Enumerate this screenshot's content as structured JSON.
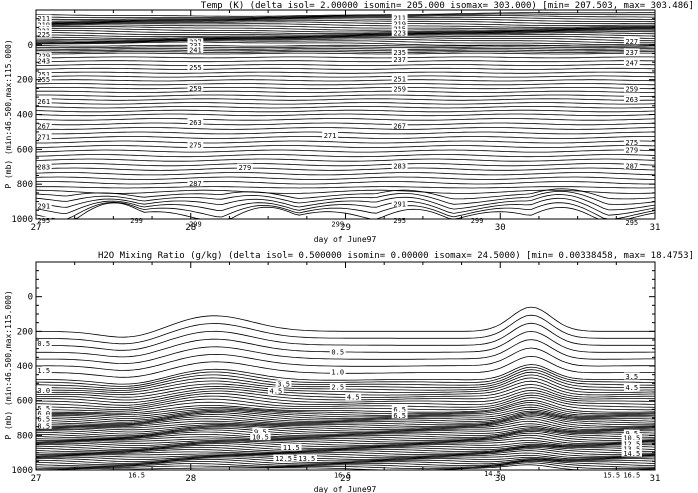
{
  "chart_data": [
    {
      "type": "contour",
      "title": "Temp (K)  (delta isol= 2.00000  isomin= 205.000  isomax= 303.000) [min= 207.503, max= 303.486]",
      "xlabel": "day of June97",
      "ylabel": "P (mb) (min:46.500,max:115.000)",
      "xlim": [
        27,
        31
      ],
      "ylim": [
        1000,
        -200
      ],
      "x_ticks": [
        "27",
        "28",
        "29",
        "30",
        "31"
      ],
      "y_ticks": [
        "0",
        "200",
        "400",
        "600",
        "800",
        "1000"
      ],
      "contour_interval": 2.0,
      "contour_min": 205.0,
      "contour_max": 303.0,
      "data_min": 207.503,
      "data_max": 303.486,
      "contour_labels": [
        {
          "x": 27.05,
          "y": -150,
          "text": "211"
        },
        {
          "x": 27.05,
          "y": -115,
          "text": "219"
        },
        {
          "x": 27.05,
          "y": -92,
          "text": "215"
        },
        {
          "x": 27.05,
          "y": -80,
          "text": "221"
        },
        {
          "x": 27.05,
          "y": -60,
          "text": "225"
        },
        {
          "x": 27.05,
          "y": 65,
          "text": "229"
        },
        {
          "x": 27.05,
          "y": 92,
          "text": "243"
        },
        {
          "x": 27.05,
          "y": 170,
          "text": "251"
        },
        {
          "x": 27.05,
          "y": 200,
          "text": "255"
        },
        {
          "x": 27.05,
          "y": 325,
          "text": "261"
        },
        {
          "x": 27.05,
          "y": 465,
          "text": "267"
        },
        {
          "x": 27.05,
          "y": 530,
          "text": "271"
        },
        {
          "x": 27.05,
          "y": 700,
          "text": "283"
        },
        {
          "x": 27.05,
          "y": 925,
          "text": "291"
        },
        {
          "x": 27.05,
          "y": 1010,
          "text": "295"
        },
        {
          "x": 28.03,
          "y": -15,
          "text": "227"
        },
        {
          "x": 28.03,
          "y": 5,
          "text": "231"
        },
        {
          "x": 28.03,
          "y": 30,
          "text": "241"
        },
        {
          "x": 28.03,
          "y": 130,
          "text": "255"
        },
        {
          "x": 28.03,
          "y": 250,
          "text": "259"
        },
        {
          "x": 28.03,
          "y": 445,
          "text": "263"
        },
        {
          "x": 28.03,
          "y": 575,
          "text": "275"
        },
        {
          "x": 28.03,
          "y": 795,
          "text": "287"
        },
        {
          "x": 28.03,
          "y": 1030,
          "text": "299"
        },
        {
          "x": 27.65,
          "y": 1010,
          "text": "299"
        },
        {
          "x": 28.95,
          "y": 1030,
          "text": "299"
        },
        {
          "x": 28.35,
          "y": 705,
          "text": "279"
        },
        {
          "x": 28.9,
          "y": 520,
          "text": "271"
        },
        {
          "x": 29.35,
          "y": -155,
          "text": "211"
        },
        {
          "x": 29.35,
          "y": -120,
          "text": "219"
        },
        {
          "x": 29.35,
          "y": -92,
          "text": "215"
        },
        {
          "x": 29.35,
          "y": -68,
          "text": "223"
        },
        {
          "x": 29.35,
          "y": 45,
          "text": "235"
        },
        {
          "x": 29.35,
          "y": 85,
          "text": "237"
        },
        {
          "x": 29.35,
          "y": 195,
          "text": "251"
        },
        {
          "x": 29.35,
          "y": 255,
          "text": "259"
        },
        {
          "x": 29.35,
          "y": 465,
          "text": "267"
        },
        {
          "x": 29.35,
          "y": 695,
          "text": "283"
        },
        {
          "x": 29.35,
          "y": 915,
          "text": "291"
        },
        {
          "x": 29.35,
          "y": 1010,
          "text": "295"
        },
        {
          "x": 29.85,
          "y": 1010,
          "text": "299"
        },
        {
          "x": 30.85,
          "y": -20,
          "text": "227"
        },
        {
          "x": 30.85,
          "y": 45,
          "text": "237"
        },
        {
          "x": 30.85,
          "y": 105,
          "text": "247"
        },
        {
          "x": 30.85,
          "y": 255,
          "text": "259"
        },
        {
          "x": 30.85,
          "y": 315,
          "text": "263"
        },
        {
          "x": 30.85,
          "y": 560,
          "text": "275"
        },
        {
          "x": 30.85,
          "y": 605,
          "text": "279"
        },
        {
          "x": 30.85,
          "y": 695,
          "text": "287"
        },
        {
          "x": 30.85,
          "y": 1020,
          "text": "295"
        }
      ]
    },
    {
      "type": "contour",
      "title": "H2O Mixing Ratio (g/kg)  (delta isol= 0.500000  isomin= 0.00000  isomax= 24.5000) [min= 0.00338458, max= 18.4753]",
      "xlabel": "day of June97",
      "ylabel": "P (mb) (min:46.500,max:115.000)",
      "xlim": [
        27,
        31
      ],
      "ylim": [
        1000,
        -200
      ],
      "x_ticks": [
        "27",
        "28",
        "29",
        "30",
        "31"
      ],
      "y_ticks": [
        "0",
        "200",
        "400",
        "600",
        "800",
        "1000"
      ],
      "contour_interval": 0.5,
      "contour_min": 0.0,
      "contour_max": 24.5,
      "data_min": 0.00338458,
      "data_max": 18.4753,
      "contour_labels": [
        {
          "x": 27.05,
          "y": 270,
          "text": "0.5"
        },
        {
          "x": 27.05,
          "y": 425,
          "text": "1.5"
        },
        {
          "x": 27.05,
          "y": 540,
          "text": "3.0"
        },
        {
          "x": 27.05,
          "y": 645,
          "text": "5.5"
        },
        {
          "x": 27.05,
          "y": 675,
          "text": "6.0"
        },
        {
          "x": 27.05,
          "y": 705,
          "text": "6.5"
        },
        {
          "x": 27.05,
          "y": 745,
          "text": "8.5"
        },
        {
          "x": 28.95,
          "y": 320,
          "text": "0.5"
        },
        {
          "x": 28.95,
          "y": 435,
          "text": "1.0"
        },
        {
          "x": 28.6,
          "y": 505,
          "text": "3.5"
        },
        {
          "x": 28.95,
          "y": 520,
          "text": "2.5"
        },
        {
          "x": 28.55,
          "y": 545,
          "text": "4.5"
        },
        {
          "x": 29.05,
          "y": 580,
          "text": "4.5"
        },
        {
          "x": 29.35,
          "y": 650,
          "text": "6.5"
        },
        {
          "x": 29.35,
          "y": 685,
          "text": "6.5"
        },
        {
          "x": 28.45,
          "y": 780,
          "text": "9.5"
        },
        {
          "x": 28.45,
          "y": 810,
          "text": "10.5"
        },
        {
          "x": 28.65,
          "y": 870,
          "text": "11.5"
        },
        {
          "x": 28.6,
          "y": 935,
          "text": "12.5"
        },
        {
          "x": 28.75,
          "y": 935,
          "text": "13.5"
        },
        {
          "x": 28.98,
          "y": 1030,
          "text": "16.5"
        },
        {
          "x": 27.65,
          "y": 1030,
          "text": "16.5"
        },
        {
          "x": 29.95,
          "y": 1020,
          "text": "14.5"
        },
        {
          "x": 30.85,
          "y": 460,
          "text": "3.5"
        },
        {
          "x": 30.85,
          "y": 525,
          "text": "4.5"
        },
        {
          "x": 30.85,
          "y": 790,
          "text": "9.5"
        },
        {
          "x": 30.85,
          "y": 815,
          "text": "10.5"
        },
        {
          "x": 30.85,
          "y": 850,
          "text": "12.5"
        },
        {
          "x": 30.85,
          "y": 880,
          "text": "13.5"
        },
        {
          "x": 30.85,
          "y": 905,
          "text": "14.5"
        },
        {
          "x": 30.72,
          "y": 1030,
          "text": "15.5"
        },
        {
          "x": 30.85,
          "y": 1030,
          "text": "16.5"
        }
      ]
    }
  ]
}
